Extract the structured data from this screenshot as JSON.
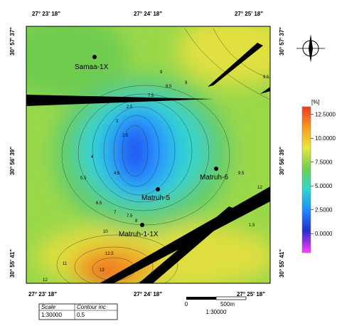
{
  "compass": "N",
  "coordinates": {
    "top": [
      "27° 23' 18\"",
      "27° 24' 18\"",
      "27° 25' 18\""
    ],
    "bottom": [
      "27° 23' 18\"",
      "27° 24' 18\"",
      "27° 25' 18\""
    ],
    "left": [
      "30° 57' 37\"",
      "30° 56' 39\"",
      "30° 55' 41\""
    ],
    "right": [
      "30° 57' 37\"",
      "30° 56' 39\"",
      "30° 55' 41\""
    ]
  },
  "wells": [
    {
      "label": "Samaa-1X"
    },
    {
      "label": "Matruh-6"
    },
    {
      "label": "Matruh-5"
    },
    {
      "label": "Matruh-1-1X"
    }
  ],
  "contour_labels": [
    "9",
    "8.5",
    "7.5",
    "3",
    "2.5",
    "2.5",
    "4",
    "4.5",
    "5.5",
    "6.5",
    "7",
    "7.5",
    "8",
    "9.5",
    "10",
    "12",
    "1.5",
    "11",
    "12.5",
    "13",
    "12",
    "9",
    "9.5"
  ],
  "colorbar": {
    "unit": "[%]",
    "range": [
      -2.0,
      13.3
    ],
    "ticks": [
      {
        "value": 12.5,
        "label": "12.5000"
      },
      {
        "value": 10,
        "label": "10.0000"
      },
      {
        "value": 7.5,
        "label": "7.5000"
      },
      {
        "value": 5,
        "label": "5.0000"
      },
      {
        "value": 2.5,
        "label": "2.5000"
      },
      {
        "value": 0,
        "label": "0.0000"
      }
    ]
  },
  "legend_box": {
    "scale_label": "Scale",
    "scale_value": "1:30000",
    "contour_label": "Contour inc",
    "contour_value": "0.5"
  },
  "scale_bar": {
    "labels": [
      "0",
      "500m"
    ],
    "ratio": "1:30000"
  }
}
